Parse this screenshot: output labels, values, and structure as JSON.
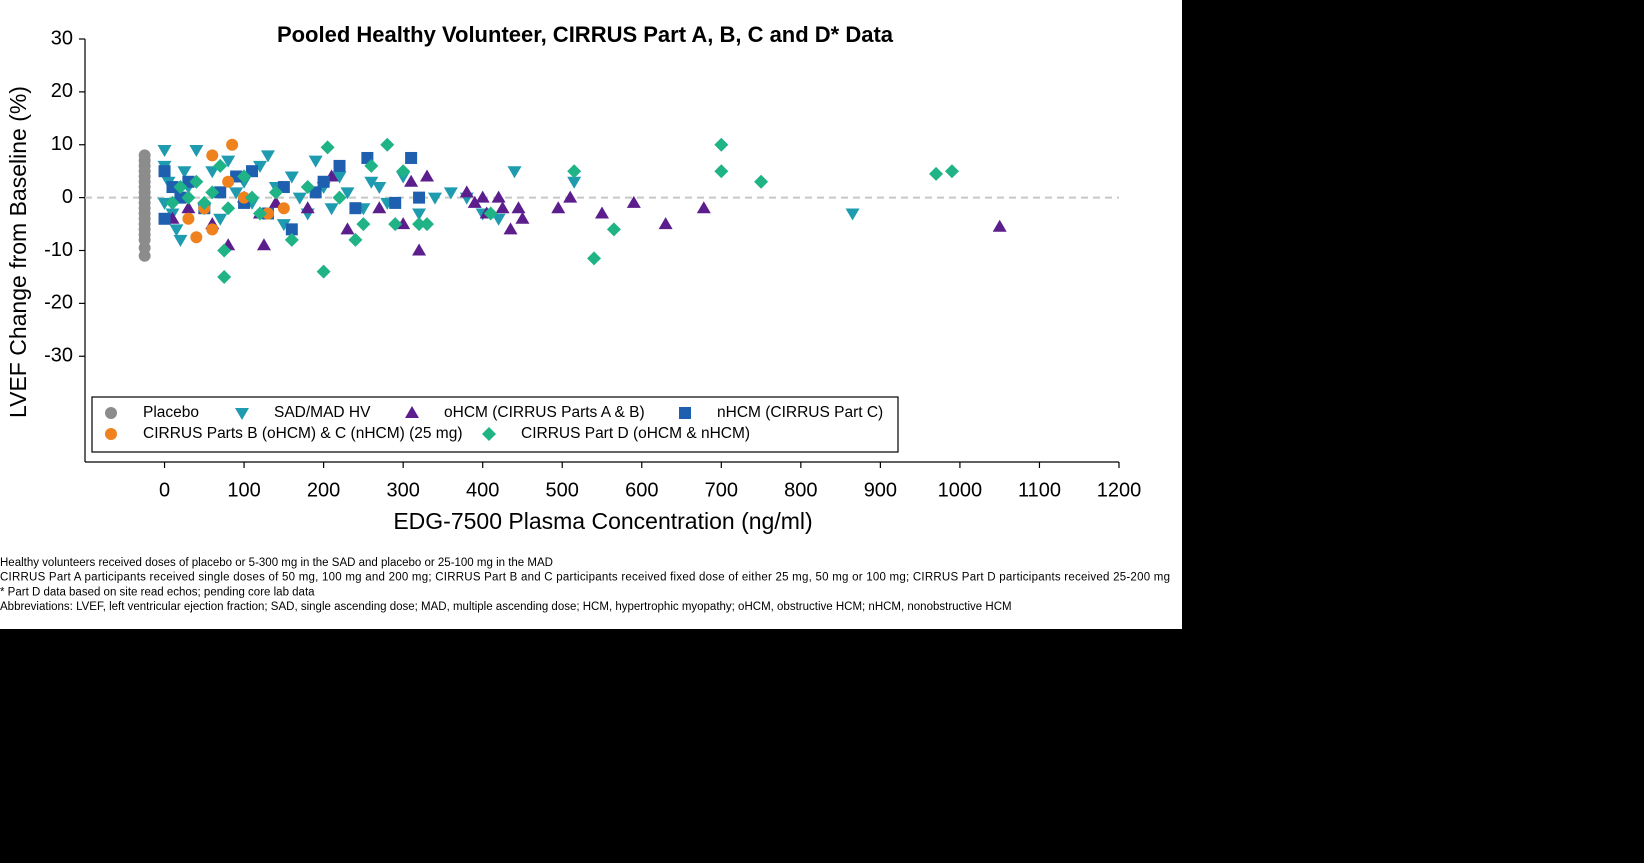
{
  "chart_data": {
    "type": "scatter",
    "title": "Pooled Healthy Volunteer, CIRRUS Part A, B, C and D* Data",
    "x_label": "EDG-7500 Plasma Concentration (ng/ml)",
    "y_label": "LVEF Change from Baseline (%)",
    "xlim": [
      -100,
      1200
    ],
    "xticks": [
      0,
      100,
      200,
      300,
      400,
      500,
      600,
      700,
      800,
      900,
      1000,
      1100,
      1200
    ],
    "ylim": [
      -50,
      30
    ],
    "yticks": [
      -30,
      -20,
      -10,
      0,
      10,
      20,
      30
    ],
    "reference_line": 0,
    "legend": "bottom-left",
    "series": [
      {
        "name": "Placebo",
        "color": "#8c8c8c",
        "marker": "circle",
        "x": [
          -25,
          -25,
          -25,
          -25,
          -25,
          -25,
          -25,
          -25,
          -25,
          -25,
          -25,
          -25,
          -25,
          -25,
          -25,
          -25,
          -25,
          -25,
          -25
        ],
        "values": [
          -11,
          -9.5,
          -8,
          -7,
          -6,
          -5,
          -4,
          -3,
          -2,
          -1,
          0,
          1,
          2,
          3,
          4,
          5,
          6,
          7,
          8
        ]
      },
      {
        "name": "SAD/MAD HV",
        "color": "#1f9bb0",
        "marker": "triangle-down",
        "x": [
          0,
          0,
          0,
          5,
          10,
          15,
          20,
          25,
          30,
          40,
          50,
          60,
          70,
          80,
          90,
          100,
          110,
          120,
          130,
          140,
          150,
          160,
          170,
          180,
          190,
          200,
          210,
          220,
          230,
          250,
          260,
          270,
          280,
          300,
          320,
          340,
          360,
          380,
          400,
          420,
          440,
          515,
          865
        ],
        "values": [
          9,
          6,
          -1,
          3,
          -3,
          -6,
          -8,
          5,
          2,
          9,
          -2,
          5,
          -4,
          7,
          1,
          3,
          -1,
          6,
          8,
          2,
          -5,
          4,
          0,
          -3,
          7,
          2,
          -2,
          4,
          1,
          -2,
          3,
          2,
          -1,
          4,
          -3,
          0,
          1,
          0,
          -3,
          -4,
          5,
          3,
          -3
        ]
      },
      {
        "name": "oHCM (CIRRUS Parts  A & B)",
        "color": "#5b1e8c",
        "marker": "triangle-up",
        "x": [
          10,
          30,
          60,
          80,
          100,
          120,
          125,
          140,
          180,
          210,
          230,
          270,
          300,
          310,
          320,
          330,
          380,
          390,
          400,
          405,
          420,
          425,
          435,
          445,
          450,
          495,
          510,
          550,
          590,
          630,
          678,
          1050
        ],
        "values": [
          -4,
          -2,
          -5,
          -9,
          0,
          -3,
          -9,
          -1,
          -2,
          4,
          -6,
          -2,
          -5,
          3,
          -10,
          4,
          1,
          -1,
          0,
          -3,
          0,
          -2,
          -6,
          -2,
          -4,
          -2,
          0,
          -3,
          -1,
          -5,
          -2,
          -5.5
        ]
      },
      {
        "name": "nHCM (CIRRUS Part  C)",
        "color": "#1f5faf",
        "marker": "square",
        "x": [
          0,
          0,
          10,
          20,
          30,
          50,
          70,
          90,
          100,
          110,
          130,
          150,
          160,
          190,
          200,
          220,
          240,
          255,
          290,
          310,
          320
        ],
        "values": [
          5,
          -4,
          2,
          0,
          3,
          -2,
          1,
          4,
          -1,
          5,
          -3,
          2,
          -6,
          1,
          3,
          6,
          -2,
          7.5,
          -1,
          7.5,
          0
        ]
      },
      {
        "name": "CIRRUS Parts B (oHCM) & C (nHCM) (25 mg)",
        "color": "#f0821e",
        "marker": "circle",
        "x": [
          30,
          40,
          50,
          60,
          60,
          80,
          85,
          100,
          130,
          150
        ],
        "values": [
          -4,
          -7.5,
          -2,
          8,
          -6,
          3,
          10,
          0,
          -3,
          -2
        ]
      },
      {
        "name": "CIRRUS Part D (oHCM & nHCM)",
        "color": "#1fb386",
        "marker": "diamond",
        "x": [
          10,
          20,
          30,
          40,
          50,
          60,
          70,
          75,
          75,
          80,
          100,
          110,
          120,
          140,
          160,
          180,
          200,
          205,
          220,
          240,
          250,
          260,
          280,
          290,
          300,
          320,
          330,
          410,
          515,
          540,
          565,
          700,
          700,
          750,
          970,
          990
        ],
        "values": [
          -1,
          2,
          0,
          3,
          -1,
          1,
          6,
          -15,
          -10,
          -2,
          4,
          0,
          -3,
          1,
          -8,
          2,
          -14,
          9.5,
          0,
          -8,
          -5,
          6,
          10,
          -5,
          5,
          -5,
          -5,
          -3,
          5,
          -11.5,
          -6,
          10,
          5,
          3,
          4.5,
          5
        ]
      }
    ],
    "notes": [
      "Healthy volunteers  received doses of placebo or 5-300 mg in the SAD and placebo or 25-100 mg in the MAD",
      "CIRRUS Part A participants received single doses of 50 mg, 100 mg and 200 mg; CIRRUS Part B and C participants received fixed dose of either 25 mg, 50 mg or 100 mg; CIRRUS Part D participants received 25-200 mg",
      "* Part D data based on site read echos; pending core lab data",
      "Abbreviations: LVEF, left ventricular ejection fraction; SAD, single ascending dose; MAD, multiple ascending dose; HCM, hypertrophic myopathy; oHCM, obstructive HCM; nHCM, nonobstructive HCM"
    ]
  }
}
